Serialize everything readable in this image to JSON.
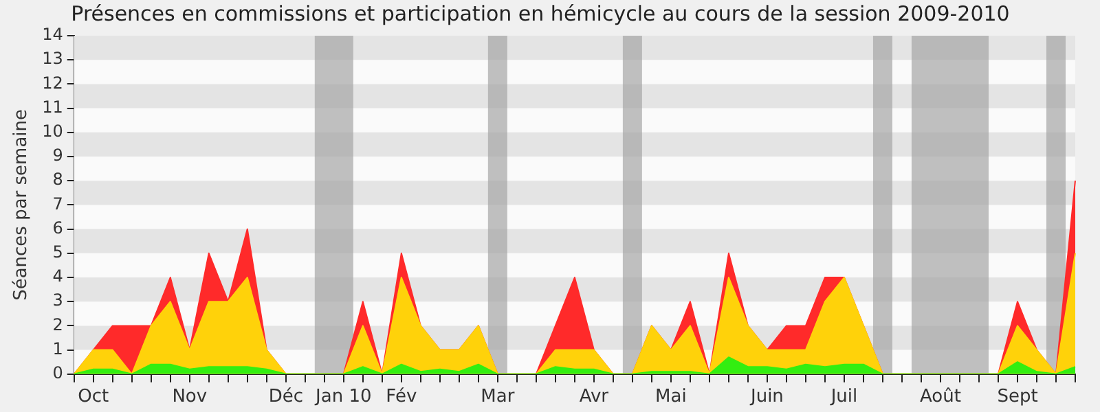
{
  "chart_data": {
    "type": "area",
    "title": "Présences en commissions et participation en hémicycle au cours de la session 2009-2010",
    "ylabel": "Séances par semaine",
    "categories": [
      null,
      "Oct",
      null,
      null,
      null,
      null,
      "Nov",
      null,
      null,
      null,
      null,
      "Déc",
      null,
      null,
      "Jan 10",
      null,
      null,
      "Fév",
      null,
      null,
      null,
      null,
      "Mar",
      null,
      null,
      null,
      null,
      "Avr",
      null,
      null,
      null,
      "Mai",
      null,
      null,
      null,
      null,
      "Juin",
      null,
      null,
      null,
      "Juil",
      null,
      null,
      null,
      null,
      "Août",
      null,
      null,
      null,
      "Sept",
      null,
      null,
      null
    ],
    "series": [
      {
        "color": "#ff2a2a",
        "values": [
          0,
          1,
          2,
          2,
          2,
          4,
          1,
          5,
          3,
          6,
          1,
          0,
          0,
          0,
          0,
          3,
          0,
          5,
          2,
          1,
          1,
          2,
          0,
          0,
          0,
          2,
          4,
          1,
          0,
          0,
          2,
          1,
          3,
          0,
          5,
          2,
          1,
          2,
          2,
          4,
          4,
          2,
          0,
          0,
          0,
          0,
          0,
          0,
          0,
          3,
          1,
          0,
          8
        ]
      },
      {
        "color": "#ffd20a",
        "values": [
          0,
          1,
          1,
          0,
          2,
          3,
          1,
          3,
          3,
          4,
          1,
          0,
          0,
          0,
          0,
          2,
          0,
          4,
          2,
          1,
          1,
          2,
          0,
          0,
          0,
          1,
          1,
          1,
          0,
          0,
          2,
          1,
          2,
          0,
          4,
          2,
          1,
          1,
          1,
          3,
          4,
          2,
          0,
          0,
          0,
          0,
          0,
          0,
          0,
          2,
          1,
          0,
          5
        ]
      },
      {
        "color": "#33ee11",
        "values": [
          0,
          0.2,
          0.2,
          0,
          0.4,
          0.4,
          0.2,
          0.3,
          0.3,
          0.3,
          0.2,
          0,
          0,
          0,
          0,
          0.3,
          0,
          0.4,
          0.1,
          0.2,
          0.1,
          0.4,
          0,
          0,
          0,
          0.3,
          0.2,
          0.2,
          0,
          0,
          0.1,
          0.1,
          0.1,
          0,
          0.7,
          0.3,
          0.3,
          0.2,
          0.4,
          0.3,
          0.4,
          0.4,
          0,
          0,
          0,
          0,
          0,
          0,
          0,
          0.5,
          0.1,
          0,
          0.3
        ]
      }
    ],
    "ylim": [
      0,
      14
    ],
    "yticks": [
      0,
      1,
      2,
      3,
      4,
      5,
      6,
      7,
      8,
      9,
      10,
      11,
      12,
      13,
      14
    ],
    "legend": false
  }
}
